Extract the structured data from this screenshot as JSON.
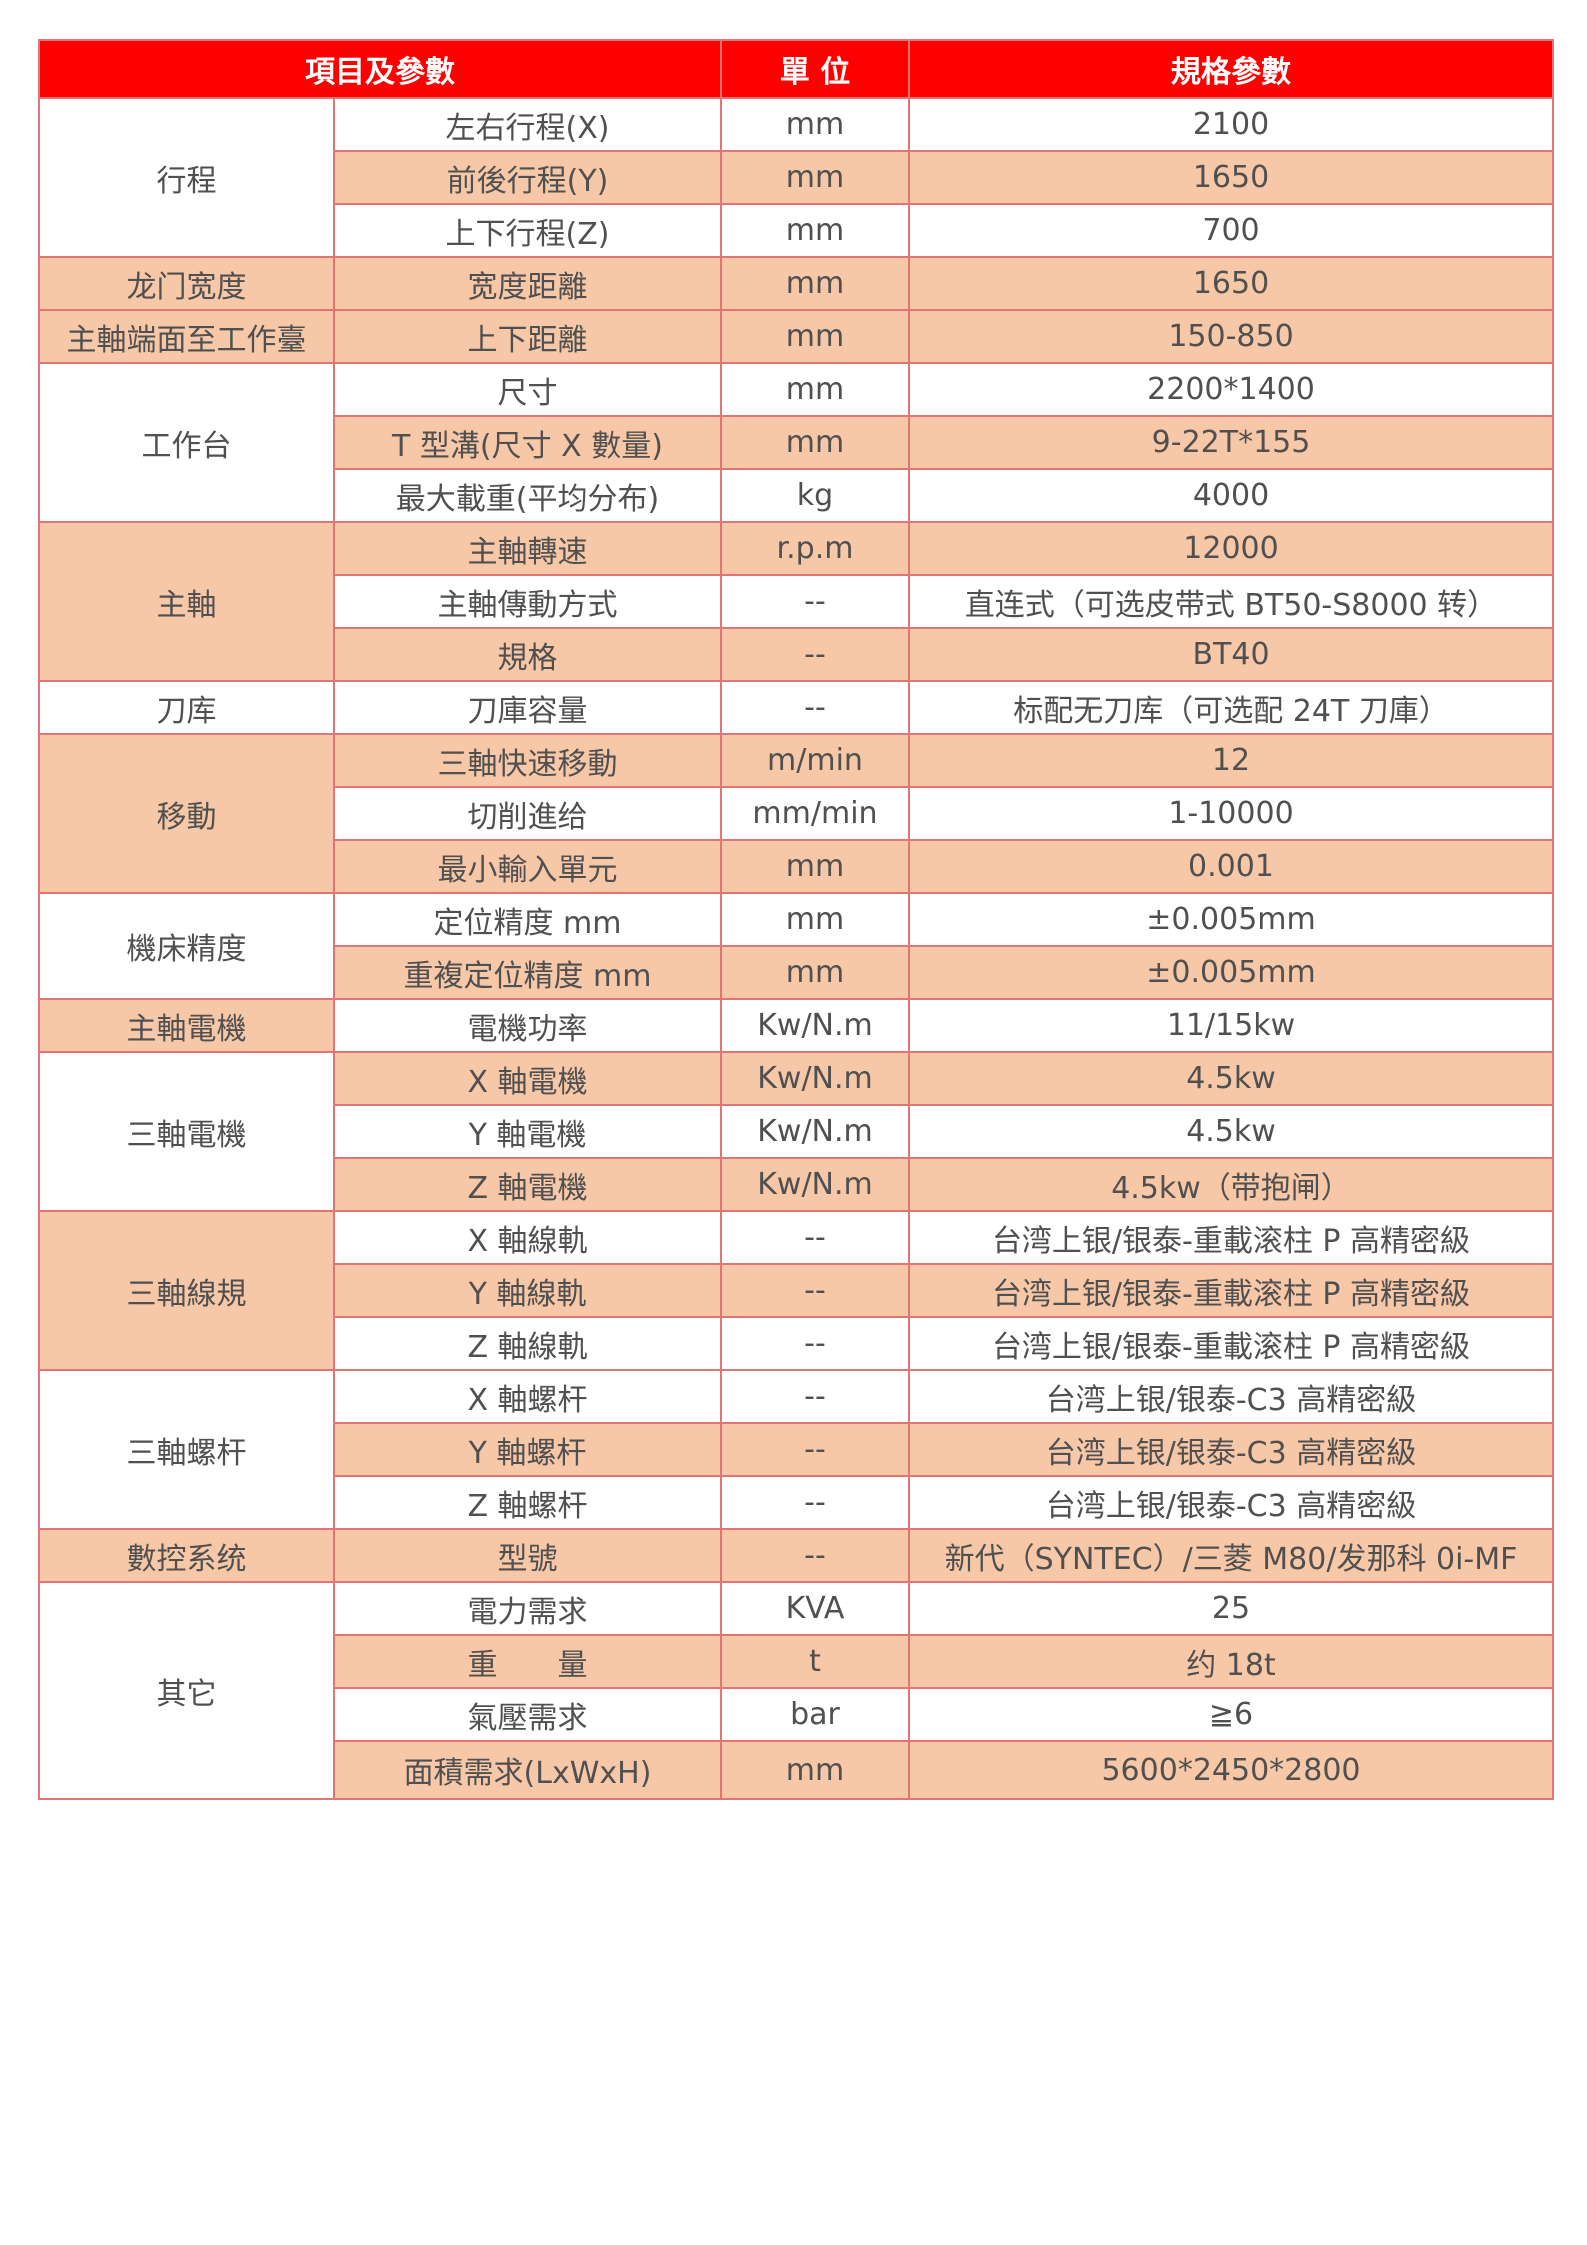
{
  "colors": {
    "header": "#FF0000",
    "alt_row": "#F7C8A8",
    "border": "#E27573",
    "text": "#505050"
  },
  "header": {
    "item": "項目及參數",
    "unit": "單 位",
    "spec": "規格參數"
  },
  "groups": [
    {
      "label": "行程",
      "shade": false,
      "rows": [
        {
          "param": "左右行程(X)",
          "unit": "mm",
          "value": "2100",
          "shade": false
        },
        {
          "param": "前後行程(Y)",
          "unit": "mm",
          "value": "1650",
          "shade": true
        },
        {
          "param": "上下行程(Z)",
          "unit": "mm",
          "value": "700",
          "shade": false
        }
      ]
    },
    {
      "label": "龙门宽度",
      "shade": true,
      "rows": [
        {
          "param": "宽度距離",
          "unit": "mm",
          "value": "1650",
          "shade": true
        }
      ]
    },
    {
      "label": "主軸端面至工作臺",
      "shade": true,
      "rows": [
        {
          "param": "上下距離",
          "unit": "mm",
          "value": "150-850",
          "shade": true
        }
      ]
    },
    {
      "label": "工作台",
      "shade": false,
      "rows": [
        {
          "param": "尺寸",
          "unit": "mm",
          "value": "2200*1400",
          "shade": false
        },
        {
          "param": "T 型溝(尺寸 X 數量)",
          "unit": "mm",
          "value": "9-22T*155",
          "shade": true
        },
        {
          "param": "最大載重(平均分布)",
          "unit": "kg",
          "value": "4000",
          "shade": false
        }
      ]
    },
    {
      "label": "主軸",
      "shade": true,
      "rows": [
        {
          "param": "主軸轉速",
          "unit": "r.p.m",
          "value": "12000",
          "shade": true
        },
        {
          "param": "主軸傳動方式",
          "unit": "--",
          "value": "直连式（可选皮带式 BT50-S8000 转）",
          "shade": false
        },
        {
          "param": "規格",
          "unit": "--",
          "value": "BT40",
          "shade": true
        }
      ]
    },
    {
      "label": "刀库",
      "shade": false,
      "rows": [
        {
          "param": "刀庫容量",
          "unit": "--",
          "value": "标配无刀库（可选配 24T 刀庫）",
          "shade": false
        }
      ]
    },
    {
      "label": "移動",
      "shade": true,
      "rows": [
        {
          "param": "三軸快速移動",
          "unit": "m/min",
          "value": "12",
          "shade": true
        },
        {
          "param": "切削進给",
          "unit": "mm/min",
          "value": "1-10000",
          "shade": false
        },
        {
          "param": "最小輸入單元",
          "unit": "mm",
          "value": "0.001",
          "shade": true
        }
      ]
    },
    {
      "label": "機床精度",
      "shade": false,
      "rows": [
        {
          "param": "定位精度 mm",
          "unit": "mm",
          "value": "±0.005mm",
          "shade": false
        },
        {
          "param": "重複定位精度 mm",
          "unit": "mm",
          "value": "±0.005mm",
          "shade": true
        }
      ]
    },
    {
      "label": "主軸電機",
      "shade": true,
      "rows": [
        {
          "param": "電機功率",
          "unit": "Kw/N.m",
          "value": "11/15kw",
          "shade": false
        }
      ]
    },
    {
      "label": "三軸電機",
      "shade": false,
      "rows": [
        {
          "param": "X 軸電機",
          "unit": "Kw/N.m",
          "value": "4.5kw",
          "shade": true
        },
        {
          "param": "Y 軸電機",
          "unit": "Kw/N.m",
          "value": "4.5kw",
          "shade": false
        },
        {
          "param": "Z 軸電機",
          "unit": "Kw/N.m",
          "value": "4.5kw（带抱闸）",
          "shade": true
        }
      ]
    },
    {
      "label": "三軸線規",
      "shade": true,
      "rows": [
        {
          "param": "X 軸線軌",
          "unit": "--",
          "value": "台湾上银/银泰-重載滚柱 P 高精密級",
          "shade": false
        },
        {
          "param": "Y 軸線軌",
          "unit": "--",
          "value": "台湾上银/银泰-重載滚柱 P 高精密級",
          "shade": true
        },
        {
          "param": "Z 軸線軌",
          "unit": "--",
          "value": "台湾上银/银泰-重載滚柱 P 高精密級",
          "shade": false
        }
      ]
    },
    {
      "label": "三軸螺杆",
      "shade": false,
      "rows": [
        {
          "param": "X 軸螺杆",
          "unit": "--",
          "value": "台湾上银/银泰-C3 高精密級",
          "shade": false
        },
        {
          "param": "Y 軸螺杆",
          "unit": "--",
          "value": "台湾上银/银泰-C3 高精密級",
          "shade": true
        },
        {
          "param": "Z 軸螺杆",
          "unit": "--",
          "value": "台湾上银/银泰-C3 高精密級",
          "shade": false
        }
      ]
    },
    {
      "label": "數控系统",
      "shade": true,
      "rows": [
        {
          "param": "型號",
          "unit": "--",
          "value": "新代（SYNTEC）/三菱 M80/发那科 0i-MF",
          "shade": true
        }
      ]
    },
    {
      "label": "其它",
      "shade": false,
      "rows": [
        {
          "param": "電力需求",
          "unit": "KVA",
          "value": "25",
          "shade": false
        },
        {
          "param": "重　　量",
          "unit": "t",
          "value": "约 18t",
          "shade": true
        },
        {
          "param": "氣壓需求",
          "unit": "bar",
          "value": "≧6",
          "shade": false
        },
        {
          "param": "面積需求(LxWxH)",
          "unit": "mm",
          "value": "5600*2450*2800",
          "shade": true
        }
      ]
    }
  ]
}
